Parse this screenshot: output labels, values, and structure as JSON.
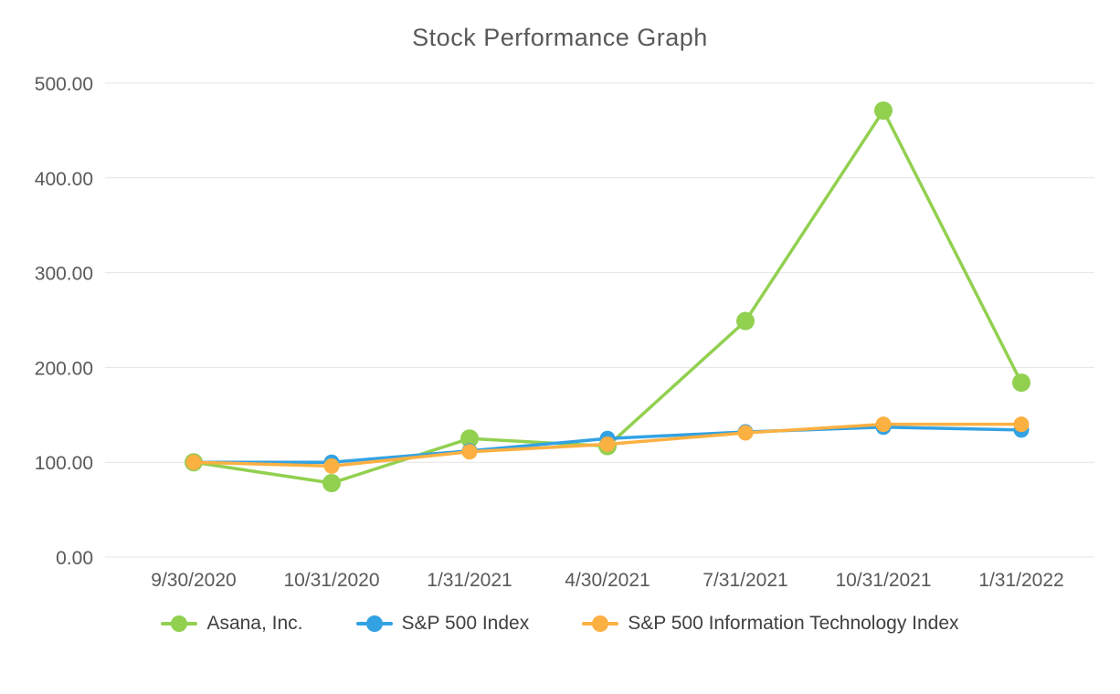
{
  "chart_data": {
    "type": "line",
    "title": "Stock Performance Graph",
    "x": [
      "9/30/2020",
      "10/31/2020",
      "1/31/2021",
      "4/30/2021",
      "7/31/2021",
      "10/31/2021",
      "1/31/2022"
    ],
    "series": [
      {
        "name": "Asana, Inc.",
        "color": "#92d050",
        "values": [
          100,
          78,
          125,
          117,
          249,
          471,
          184
        ]
      },
      {
        "name": "S&P 500 Index",
        "color": "#33a2e3",
        "values": [
          100,
          100,
          112,
          125,
          132,
          137,
          134
        ]
      },
      {
        "name": "S&P 500 Information Technology Index",
        "color": "#fbb042",
        "values": [
          100,
          96,
          111,
          119,
          131,
          140,
          140
        ]
      }
    ],
    "ylim": [
      0,
      500
    ],
    "yticks": [
      "0.00",
      "100.00",
      "200.00",
      "300.00",
      "400.00",
      "500.00"
    ],
    "grid": true,
    "legend_position": "bottom",
    "marker": "circle"
  },
  "colors": {
    "grid": "#e4e4e4",
    "axis_text": "#595959",
    "title_text": "#595959",
    "background": "#ffffff"
  }
}
